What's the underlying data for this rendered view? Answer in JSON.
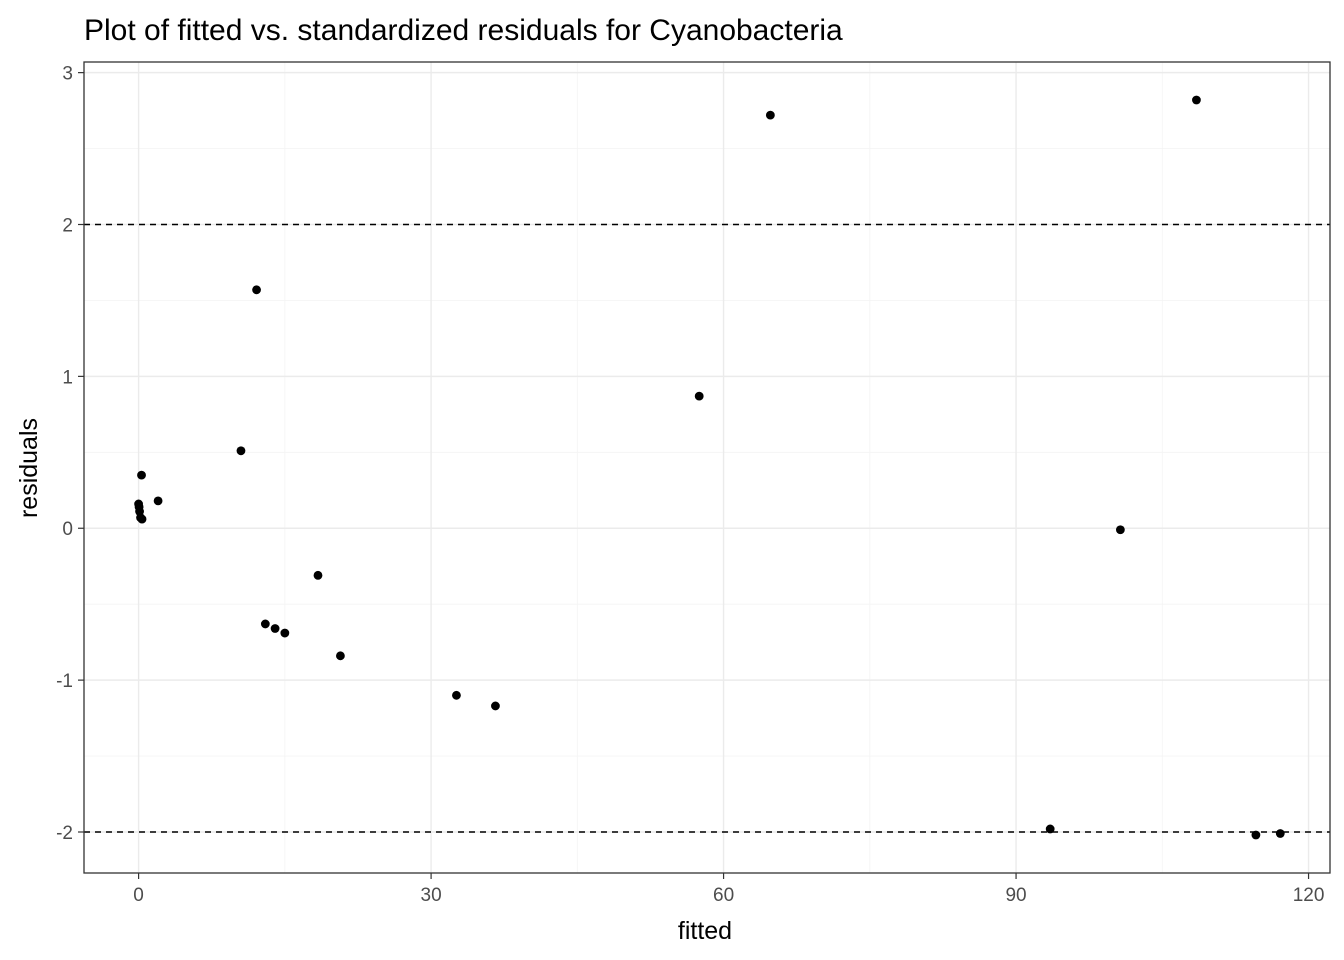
{
  "chart_data": {
    "type": "scatter",
    "title": "Plot of fitted vs. standardized residuals for Cyanobacteria",
    "xlabel": "fitted",
    "ylabel": "residuals",
    "xlim": [
      -5.6,
      122.2
    ],
    "ylim": [
      -2.27,
      3.07
    ],
    "x_ticks": [
      0,
      30,
      60,
      90,
      120
    ],
    "y_ticks": [
      -2,
      -1,
      0,
      1,
      2,
      3
    ],
    "x_tick_labels": [
      "0",
      "30",
      "60",
      "90",
      "120"
    ],
    "y_tick_labels": [
      "-2",
      "-1",
      "0",
      "1",
      "2",
      "3"
    ],
    "reference_lines": [
      2,
      -2
    ],
    "grid": true,
    "point_color": "#000000",
    "points": [
      {
        "x": 0.0,
        "y": 0.16
      },
      {
        "x": 0.05,
        "y": 0.14
      },
      {
        "x": 0.1,
        "y": 0.11
      },
      {
        "x": 0.2,
        "y": 0.07
      },
      {
        "x": 0.35,
        "y": 0.06
      },
      {
        "x": 0.3,
        "y": 0.35
      },
      {
        "x": 2.0,
        "y": 0.18
      },
      {
        "x": 10.5,
        "y": 0.51
      },
      {
        "x": 12.1,
        "y": 1.57
      },
      {
        "x": 13.0,
        "y": -0.63
      },
      {
        "x": 14.0,
        "y": -0.66
      },
      {
        "x": 15.0,
        "y": -0.69
      },
      {
        "x": 18.4,
        "y": -0.31
      },
      {
        "x": 20.7,
        "y": -0.84
      },
      {
        "x": 32.6,
        "y": -1.1
      },
      {
        "x": 36.6,
        "y": -1.17
      },
      {
        "x": 57.5,
        "y": 0.87
      },
      {
        "x": 64.8,
        "y": 2.72
      },
      {
        "x": 93.5,
        "y": -1.98
      },
      {
        "x": 100.7,
        "y": -0.01
      },
      {
        "x": 108.5,
        "y": 2.82
      },
      {
        "x": 114.6,
        "y": -2.02
      },
      {
        "x": 117.1,
        "y": -2.01
      }
    ]
  }
}
